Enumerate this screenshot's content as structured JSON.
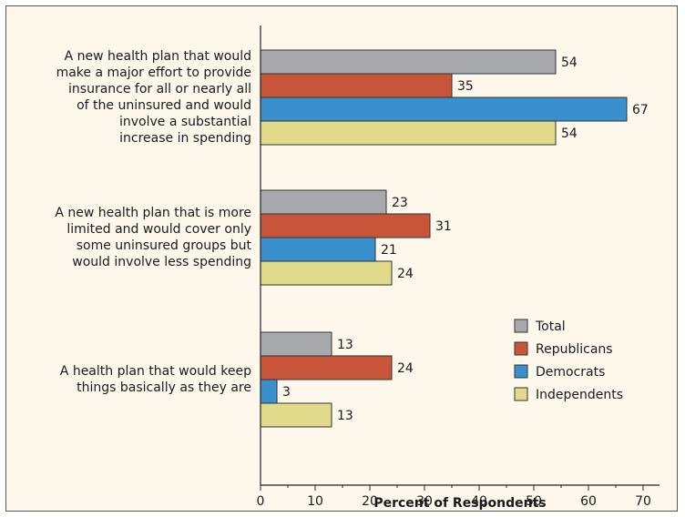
{
  "chart_data": {
    "type": "bar",
    "orientation": "horizontal",
    "categories": [
      [
        "A new health plan that would",
        "make a major effort to provide",
        "insurance for all or nearly all",
        "of the uninsured and would",
        "involve a substantial",
        "increase in spending"
      ],
      [
        "A new health plan that is more",
        "limited and would cover only",
        "some uninsured groups but",
        "would involve less spending"
      ],
      [
        "A health plan that would keep",
        "things basically as they are"
      ]
    ],
    "series": [
      {
        "name": "Total",
        "color": "#a7a9ac",
        "values": [
          54,
          23,
          13
        ]
      },
      {
        "name": "Republicans",
        "color": "#c8553a",
        "values": [
          35,
          31,
          24
        ]
      },
      {
        "name": "Democrats",
        "color": "#3a8fcd",
        "values": [
          67,
          21,
          3
        ]
      },
      {
        "name": "Independents",
        "color": "#e0da8a",
        "values": [
          54,
          24,
          13
        ]
      }
    ],
    "xlabel": "Percent of Respondents",
    "xlim": [
      0,
      73
    ],
    "xticks": [
      0,
      10,
      20,
      30,
      40,
      50,
      60,
      70
    ],
    "legend_position": "right-lower",
    "grid": false
  }
}
